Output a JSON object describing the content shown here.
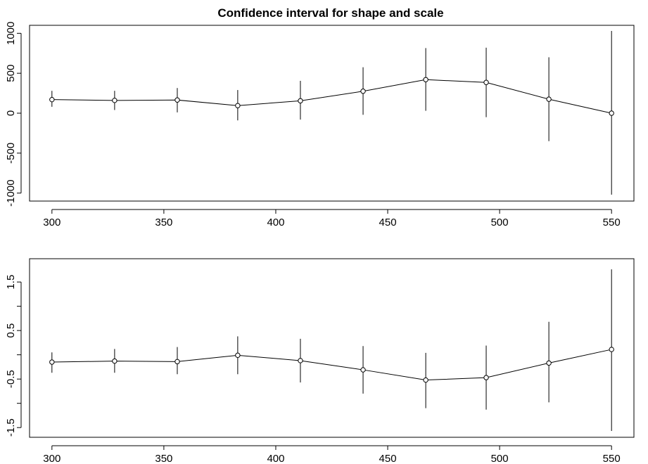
{
  "chart_data": [
    {
      "type": "scatter",
      "title": "Confidence interval for shape and scale",
      "xlabel": "",
      "ylabel": "",
      "x_ticks": [
        300,
        350,
        400,
        450,
        500,
        550
      ],
      "y_ticks": [
        1000,
        500,
        0,
        -500,
        -1000
      ],
      "y_tick_labels": [
        "1000",
        "500",
        "0",
        "-500",
        "-1000"
      ],
      "xlim": [
        290,
        560
      ],
      "ylim": [
        -1100,
        1100
      ],
      "grid": false,
      "series": [
        {
          "x": [
            300,
            328,
            356,
            383,
            411,
            439,
            467,
            494,
            522,
            550
          ],
          "y": [
            170,
            160,
            165,
            95,
            155,
            275,
            420,
            385,
            175,
            0
          ],
          "lower": [
            80,
            40,
            10,
            -90,
            -80,
            -20,
            30,
            -50,
            -350,
            -1020
          ],
          "upper": [
            280,
            280,
            315,
            290,
            405,
            575,
            815,
            820,
            700,
            1030
          ]
        }
      ]
    },
    {
      "type": "scatter",
      "title": "",
      "xlabel": "",
      "ylabel": "",
      "x_ticks": [
        300,
        350,
        400,
        450,
        500,
        550
      ],
      "y_ticks": [
        1.5,
        1.0,
        0.5,
        0.0,
        -0.5,
        -1.0,
        -1.5
      ],
      "y_tick_labels": [
        "1.5",
        "",
        "0.5",
        "",
        "-0.5",
        "",
        "-1.5"
      ],
      "xlim": [
        290,
        560
      ],
      "ylim": [
        -1.7,
        1.98
      ],
      "grid": false,
      "series": [
        {
          "x": [
            300,
            328,
            356,
            383,
            411,
            439,
            467,
            494,
            522,
            550
          ],
          "y": [
            -0.15,
            -0.13,
            -0.14,
            -0.01,
            -0.12,
            -0.31,
            -0.52,
            -0.47,
            -0.17,
            0.11
          ],
          "lower": [
            -0.37,
            -0.37,
            -0.4,
            -0.4,
            -0.57,
            -0.8,
            -1.1,
            -1.13,
            -0.98,
            -1.57
          ],
          "upper": [
            0.05,
            0.12,
            0.16,
            0.38,
            0.33,
            0.18,
            0.04,
            0.19,
            0.68,
            1.76
          ]
        }
      ]
    }
  ]
}
